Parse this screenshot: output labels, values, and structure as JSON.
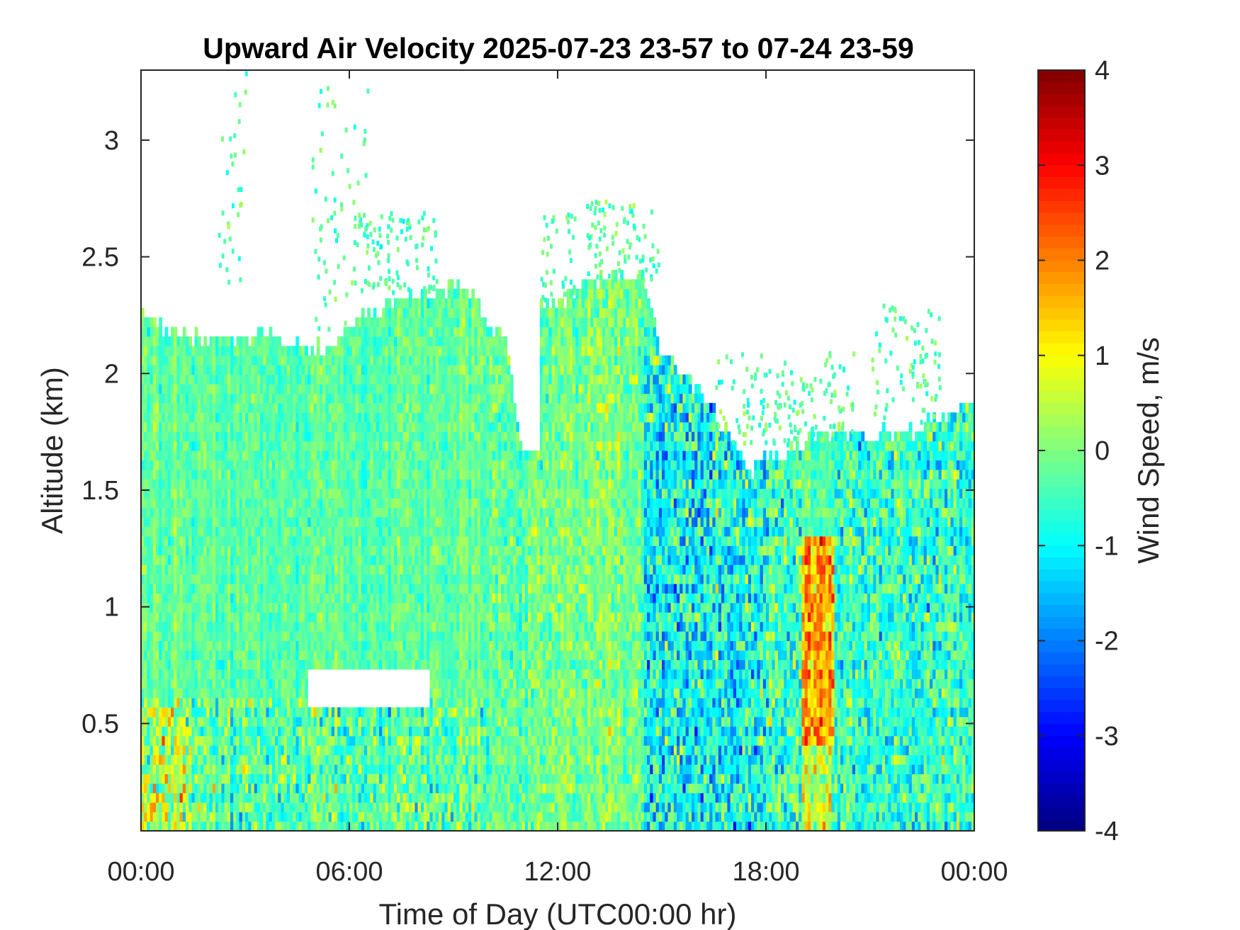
{
  "chart_data": {
    "type": "heatmap",
    "title": "Upward Air Velocity 2025-07-23 23-57 to 07-24 23-59",
    "xlabel": "Time of Day (UTC00:00 hr)",
    "ylabel": "Altitude (km)",
    "colorbar_label": "Wind Speed, m/s",
    "xlim": [
      0,
      24
    ],
    "ylim": [
      0.04,
      3.3
    ],
    "clim": [
      -4,
      4
    ],
    "colormap": "jet",
    "grid": false,
    "x_ticks": [
      {
        "value": 0,
        "label": "00:00"
      },
      {
        "value": 6,
        "label": "06:00"
      },
      {
        "value": 12,
        "label": "12:00"
      },
      {
        "value": 18,
        "label": "18:00"
      },
      {
        "value": 24,
        "label": "00:00"
      }
    ],
    "y_ticks": [
      {
        "value": 0.5,
        "label": "0.5"
      },
      {
        "value": 1,
        "label": "1"
      },
      {
        "value": 1.5,
        "label": "1.5"
      },
      {
        "value": 2,
        "label": "2"
      },
      {
        "value": 2.5,
        "label": "2.5"
      },
      {
        "value": 3,
        "label": "3"
      }
    ],
    "colorbar_ticks": [
      {
        "value": 4,
        "label": "4"
      },
      {
        "value": 3,
        "label": "3"
      },
      {
        "value": 2,
        "label": "2"
      },
      {
        "value": 1,
        "label": "1"
      },
      {
        "value": 0,
        "label": "0"
      },
      {
        "value": -1,
        "label": "-1"
      },
      {
        "value": -2,
        "label": "-2"
      },
      {
        "value": -3,
        "label": "-3"
      },
      {
        "value": -4,
        "label": "-4"
      }
    ],
    "data_top_km": [
      [
        0,
        2.25
      ],
      [
        0.5,
        2.22
      ],
      [
        1,
        2.18
      ],
      [
        1.5,
        2.16
      ],
      [
        2,
        2.15
      ],
      [
        3,
        2.16
      ],
      [
        3.5,
        2.17
      ],
      [
        4,
        2.15
      ],
      [
        4.5,
        2.12
      ],
      [
        5,
        2.09
      ],
      [
        5.5,
        2.12
      ],
      [
        6,
        2.2
      ],
      [
        7,
        2.3
      ],
      [
        8,
        2.35
      ],
      [
        9,
        2.38
      ],
      [
        9.5,
        2.35
      ],
      [
        10,
        2.2
      ],
      [
        10.5,
        2.15
      ],
      [
        11,
        1.65
      ],
      [
        11.3,
        2.2
      ],
      [
        11.5,
        2.3
      ],
      [
        12,
        2.3
      ],
      [
        13,
        2.42
      ],
      [
        14,
        2.42
      ],
      [
        14.5,
        2.4
      ],
      [
        15,
        2.1
      ],
      [
        15.5,
        2.0
      ],
      [
        16,
        1.95
      ],
      [
        16.5,
        1.85
      ],
      [
        17,
        1.75
      ],
      [
        17.5,
        1.6
      ],
      [
        18,
        1.65
      ],
      [
        19,
        1.7
      ],
      [
        20,
        1.75
      ],
      [
        21,
        1.72
      ],
      [
        22,
        1.75
      ],
      [
        23,
        1.8
      ],
      [
        24,
        1.9
      ]
    ],
    "gaps": [
      {
        "x": [
          10.95,
          11.45
        ],
        "y": [
          1.68,
          3.3
        ]
      },
      {
        "x": [
          4.8,
          8.3
        ],
        "y": [
          0.56,
          0.72
        ]
      }
    ],
    "regimes": [
      {
        "x": [
          0,
          1.5
        ],
        "y": [
          0.04,
          0.6
        ],
        "mean": 0.3,
        "spread": 1.2
      },
      {
        "x": [
          0,
          10
        ],
        "y": [
          0.6,
          2.4
        ],
        "mean": -0.3,
        "spread": 0.4
      },
      {
        "x": [
          0,
          10
        ],
        "y": [
          0.04,
          0.6
        ],
        "mean": -0.3,
        "spread": 0.9
      },
      {
        "x": [
          10,
          14.5
        ],
        "y": [
          0.04,
          2.5
        ],
        "mean": -0.1,
        "spread": 0.6
      },
      {
        "x": [
          14.5,
          18
        ],
        "y": [
          0.04,
          2.2
        ],
        "mean": -0.9,
        "spread": 1.1
      },
      {
        "x": [
          18,
          19
        ],
        "y": [
          0.04,
          2.0
        ],
        "mean": -0.5,
        "spread": 1.0
      },
      {
        "x": [
          19,
          20
        ],
        "y": [
          0.4,
          1.3
        ],
        "mean": 1.8,
        "spread": 0.9
      },
      {
        "x": [
          19,
          20
        ],
        "y": [
          0.04,
          0.4
        ],
        "mean": 0.5,
        "spread": 1.0
      },
      {
        "x": [
          20,
          24
        ],
        "y": [
          0.04,
          2.0
        ],
        "mean": -0.6,
        "spread": 0.9
      }
    ],
    "sparse_echoes": [
      {
        "x": [
          2.2,
          3.0
        ],
        "y": [
          2.4,
          3.3
        ]
      },
      {
        "x": [
          4.9,
          6.5
        ],
        "y": [
          2.2,
          3.25
        ]
      },
      {
        "x": [
          6.0,
          8.5
        ],
        "y": [
          2.35,
          2.7
        ]
      },
      {
        "x": [
          11.5,
          12.5
        ],
        "y": [
          2.3,
          2.7
        ]
      },
      {
        "x": [
          12.8,
          14.9
        ],
        "y": [
          2.4,
          2.75
        ]
      },
      {
        "x": [
          16.5,
          20.5
        ],
        "y": [
          1.7,
          2.1
        ]
      },
      {
        "x": [
          21,
          23
        ],
        "y": [
          1.8,
          2.3
        ]
      }
    ]
  }
}
